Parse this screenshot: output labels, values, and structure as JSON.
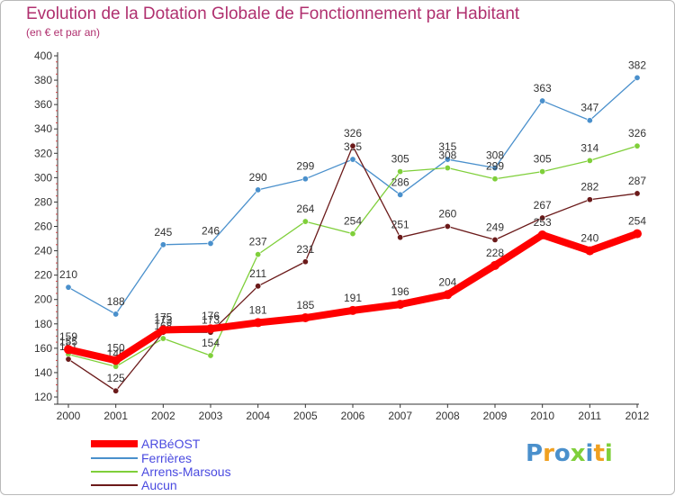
{
  "chart_data": {
    "type": "line",
    "title": "Evolution de la Dotation Globale de Fonctionnement par Habitant",
    "subtitle": "(en € et par an)",
    "xlabel": "",
    "ylabel": "",
    "ylim": [
      120,
      400
    ],
    "yticks": [
      120,
      140,
      160,
      180,
      200,
      220,
      240,
      260,
      280,
      300,
      320,
      340,
      360,
      380,
      400
    ],
    "categories": [
      "2000",
      "2001",
      "2002",
      "2003",
      "2004",
      "2005",
      "2006",
      "2007",
      "2008",
      "2009",
      "2010",
      "2011",
      "2012"
    ],
    "grid": false,
    "series": [
      {
        "name": "Ferrières",
        "color": "#4a90cc",
        "values": [
          210,
          188,
          245,
          246,
          290,
          299,
          315,
          286,
          315,
          308,
          363,
          347,
          382
        ],
        "labels": [
          "210",
          "188",
          "245",
          "246",
          "290",
          "299",
          "315",
          "286",
          "315",
          "308",
          "363",
          "347",
          "382"
        ]
      },
      {
        "name": "Arrens-Marsous",
        "color": "#7fcf3a",
        "values": [
          155,
          145,
          168,
          154,
          237,
          264,
          254,
          305,
          308,
          299,
          305,
          314,
          326
        ],
        "labels": [
          "155",
          "145",
          "168",
          "154",
          "237",
          "264",
          "254",
          "305",
          "308",
          "299",
          "305",
          "314",
          "326"
        ]
      },
      {
        "name": "Aucun",
        "color": "#6b1a1a",
        "values": [
          151,
          125,
          173,
          173,
          211,
          231,
          326,
          251,
          260,
          249,
          267,
          282,
          287
        ],
        "labels": [
          "151",
          "125",
          "173",
          "173",
          "211",
          "231",
          "326",
          "251",
          "260",
          "249",
          "267",
          "282",
          "287"
        ]
      },
      {
        "name": "ARBéOST",
        "color": "#ff0000",
        "values": [
          159,
          150,
          175,
          176,
          181,
          185,
          191,
          196,
          204,
          228,
          253,
          240,
          254
        ],
        "labels": [
          "159",
          "150",
          "175",
          "176",
          "181",
          "185",
          "191",
          "196",
          "204",
          "228",
          "253",
          "240",
          "254"
        ]
      }
    ],
    "legend": {
      "position": "bottom-left",
      "order": [
        "ARBéOST",
        "Ferrières",
        "Arrens-Marsous",
        "Aucun"
      ]
    }
  },
  "logo": {
    "text": "Proxiti",
    "letter_colors": [
      "#4a90cc",
      "#f0a020",
      "#4a90cc",
      "#7fcf3a",
      "#4a90cc",
      "#f0a020",
      "#7fcf3a"
    ]
  }
}
